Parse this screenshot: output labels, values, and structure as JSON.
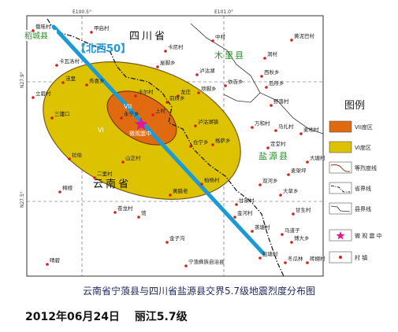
{
  "map": {
    "coord_top": [
      "E100.5°",
      "E101.0°"
    ],
    "coord_left": [
      "N27.9°",
      "N27.5°"
    ],
    "provinces": [
      "四川省",
      "云南省"
    ],
    "counties": [
      "木里县",
      "盐源县"
    ],
    "county_left_tag": "稻城县",
    "fault_label": "【北西50】",
    "zone_labels": [
      "VII",
      "VI"
    ],
    "epicenter_label": "微观震中",
    "places": [
      "俄哇村",
      "甲启村",
      "中村",
      "黄泥巴村",
      "洞村",
      "卡瓦洛村",
      "西秋乡",
      "卡尼村",
      "秀喜乡",
      "屋脚乡",
      "泸沽湖",
      "卡尔村",
      "依吉乡",
      "项脚乡",
      "后所乡",
      "洼里",
      "龙庄",
      "三湾",
      "野落村",
      "立碧村",
      "前所乡",
      "马扎村",
      "三江口",
      "泸沽湖镇",
      "万和村",
      "麦地村",
      "永宁乡",
      "格萨乡",
      "仓宁乡",
      "上村",
      "定堂村",
      "大塘村",
      "拉伯",
      "山正村",
      "麦架坪",
      "二里村",
      "双河乡",
      "柏杨村",
      "大草乡",
      "棉桠",
      "黄腊老",
      "甘家村",
      "苍龙村",
      "金河村",
      "甘生村",
      "蒸塘村",
      "馆",
      "马道子",
      "金子沟",
      "博大乡",
      "盐塘村",
      "冬瓜林",
      "砖棚村",
      "宁蒗彝族自治县",
      "晴碧"
    ]
  },
  "legend": {
    "title": "图例",
    "items": [
      "VII度区",
      "VI度区",
      "等烈度线",
      "省界线",
      "县界线",
      "微 观 震 中",
      "村 镇"
    ]
  },
  "caption": "云南省宁蒗县与四川省盐源县交界5.7级地震烈度分布图",
  "footer": {
    "date": "2012年06月24日",
    "event": "丽江5.7级"
  },
  "colors": {
    "vi_zone": "#dcc200",
    "vii_zone": "#e06a10",
    "fault_line": "#1b9ad6",
    "epicenter": "#e01a8c",
    "village": "#d62020",
    "county_label": "#2f8f2f"
  }
}
